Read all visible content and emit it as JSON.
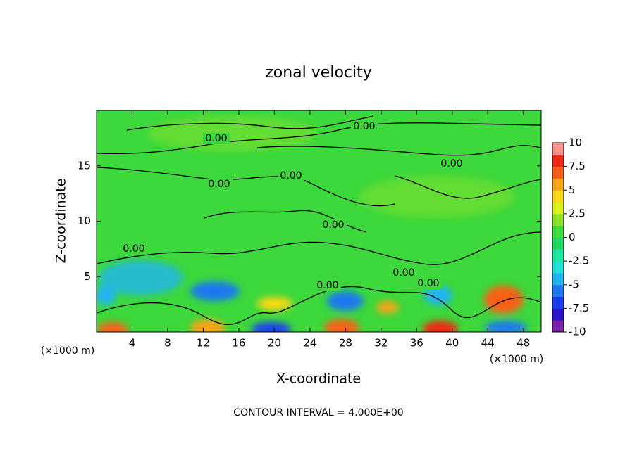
{
  "chart_data": {
    "type": "contour",
    "title": "zonal velocity",
    "x_label": "X-coordinate",
    "y_label": "Z-coordinate",
    "x_unit_left": "(×1000 m)",
    "x_unit_right": "(×1000 m)",
    "xlim": [
      0,
      50
    ],
    "xticks": [
      4,
      8,
      12,
      16,
      20,
      24,
      28,
      32,
      36,
      40,
      44,
      48
    ],
    "ylim": [
      0,
      20
    ],
    "yticks": [
      5,
      10,
      15
    ],
    "contour_labels": [
      "0.00",
      "0.00",
      "0.00",
      "0.00",
      "0.00",
      "0.00",
      "0.00",
      "0.00",
      "0.00",
      "0.00"
    ],
    "footer": "CONTOUR INTERVAL = 4.000E+00",
    "colorbar": {
      "lim": [
        -10,
        10
      ],
      "ticks": [
        10,
        7.5,
        5,
        2.5,
        0,
        -2.5,
        -5,
        -7.5,
        -10
      ],
      "colors": [
        "#7a1fa8",
        "#2a10c8",
        "#1a3cf0",
        "#1e78f0",
        "#20b4f0",
        "#1ee0d0",
        "#1ee6a0",
        "#20d860",
        "#3cd83c",
        "#8ae028",
        "#d8ec18",
        "#f8d818",
        "#f8a418",
        "#f86018",
        "#f02818",
        "#f89090"
      ]
    }
  }
}
